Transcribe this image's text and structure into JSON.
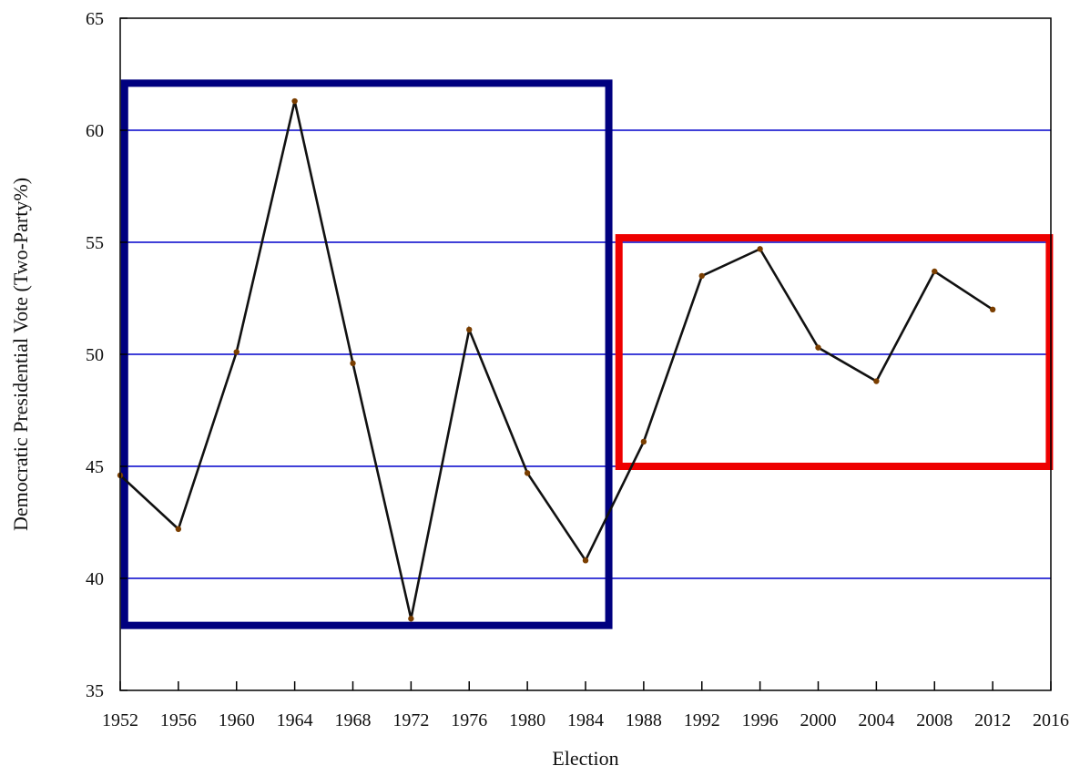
{
  "chart_data": {
    "type": "line",
    "title": "",
    "xlabel": "Election",
    "ylabel": "Democratic Presidential Vote (Two-Party%)",
    "xlim": [
      1952,
      2016
    ],
    "ylim": [
      35,
      65
    ],
    "xticks": [
      1952,
      1956,
      1960,
      1964,
      1968,
      1972,
      1976,
      1980,
      1984,
      1988,
      1992,
      1996,
      2000,
      2004,
      2008,
      2012,
      2016
    ],
    "yticks": [
      35,
      40,
      45,
      50,
      55,
      60,
      65
    ],
    "gridlines_y": [
      40,
      45,
      50,
      55,
      60
    ],
    "grid": "horizontal",
    "legend": "none",
    "series": [
      {
        "x": [
          1952,
          1956,
          1960,
          1964,
          1968,
          1972,
          1976,
          1980,
          1984,
          1988,
          1992,
          1996,
          2000,
          2004,
          2008,
          2012
        ],
        "y": [
          44.6,
          42.2,
          50.1,
          61.3,
          49.6,
          38.2,
          51.1,
          44.7,
          40.8,
          46.1,
          53.5,
          54.7,
          50.3,
          48.8,
          53.7,
          52.0
        ]
      }
    ],
    "highlight_boxes": [
      {
        "x_range": [
          1952.3,
          1985.6
        ],
        "y_range": [
          37.9,
          62.1
        ],
        "color": "#00007f"
      },
      {
        "x_range": [
          1986.3,
          2015.9
        ],
        "y_range": [
          45.0,
          55.2
        ],
        "color": "#ee0000"
      }
    ]
  },
  "colors": {
    "gridline": "#0000cc",
    "line": "#111111",
    "marker": "#7a3e00",
    "axis": "#000000"
  }
}
